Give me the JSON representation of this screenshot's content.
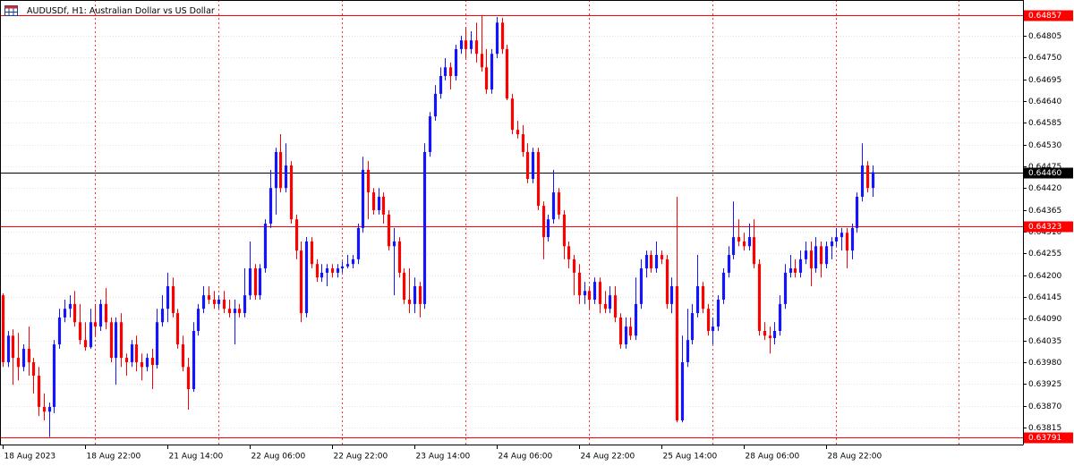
{
  "chart_data": {
    "type": "candlestick",
    "title": "AUDUSDf, H1:  Australian Dollar vs US Dollar",
    "up_color": "#1414ff",
    "down_color": "#ff0000",
    "grid": true,
    "xlim": [
      -0.5,
      198.3
    ],
    "ylim": [
      0.63772,
      0.64895
    ],
    "yticks": [
      0.64805,
      {
        "value": 0.6475,
        "label": "0.64750"
      },
      0.64695,
      {
        "value": 0.6464,
        "label": "0.64640"
      },
      0.64585,
      {
        "value": 0.6453,
        "label": "0.64530"
      },
      0.64475,
      {
        "value": 0.6442,
        "label": "0.64420"
      },
      0.64365,
      {
        "value": 0.6431,
        "label": "0.64310"
      },
      0.64255,
      {
        "value": 0.642,
        "label": "0.64200"
      },
      0.64145,
      {
        "value": 0.6409,
        "label": "0.64090"
      },
      0.64035,
      {
        "value": 0.6398,
        "label": "0.63980"
      },
      0.63925,
      {
        "value": 0.6387,
        "label": "0.63870"
      },
      0.63815
    ],
    "xticks": [
      {
        "value": 0,
        "label": "18 Aug 2023"
      },
      {
        "value": 16,
        "label": "18 Aug 22:00"
      },
      {
        "value": 32,
        "label": "21 Aug 14:00"
      },
      {
        "value": 48,
        "label": "22 Aug 06:00"
      },
      {
        "value": 64,
        "label": "22 Aug 22:00"
      },
      {
        "value": 80,
        "label": "23 Aug 14:00"
      },
      {
        "value": 96,
        "label": "24 Aug 06:00"
      },
      {
        "value": 112,
        "label": "24 Aug 22:00"
      },
      {
        "value": 128,
        "label": "25 Aug 14:00"
      },
      {
        "value": 144,
        "label": "28 Aug 06:00"
      },
      {
        "value": 160,
        "label": "28 Aug 22:00"
      }
    ],
    "hlines": [
      {
        "value": 0.64857,
        "color": "#ff0000"
      },
      {
        "value": 0.6446,
        "label": "0.64460",
        "color": "#000000"
      },
      {
        "value": 0.64323,
        "color": "#ff0000"
      },
      {
        "value": 0.63791,
        "color": "#ff0000"
      }
    ],
    "ohlc": [
      [
        0.64149,
        0.64154,
        0.63968,
        0.6398
      ],
      [
        0.6398,
        0.64059,
        0.63968,
        0.64047
      ],
      [
        0.64047,
        0.64063,
        0.63923,
        0.63991
      ],
      [
        0.63991,
        0.64054,
        0.63934,
        0.63968
      ],
      [
        0.63968,
        0.64025,
        0.63957,
        0.64014
      ],
      [
        0.64014,
        0.6407,
        0.63946,
        0.6398
      ],
      [
        0.6398,
        0.63991,
        0.63901,
        0.63946
      ],
      [
        0.63946,
        0.63968,
        0.63844,
        0.63867
      ],
      [
        0.63867,
        0.63901,
        0.63833,
        0.63855
      ],
      [
        0.63855,
        0.63878,
        0.63791,
        0.63867
      ],
      [
        0.63867,
        0.64036,
        0.63851,
        0.64025
      ],
      [
        0.64025,
        0.64115,
        0.64014,
        0.64093
      ],
      [
        0.64093,
        0.64138,
        0.64081,
        0.64115
      ],
      [
        0.64115,
        0.64149,
        0.64093,
        0.64127
      ],
      [
        0.64127,
        0.6416,
        0.6407,
        0.64081
      ],
      [
        0.64081,
        0.64127,
        0.64025,
        0.64036
      ],
      [
        0.64036,
        0.64081,
        0.64009,
        0.64018
      ],
      [
        0.64018,
        0.64115,
        0.64014,
        0.64081
      ],
      [
        0.64081,
        0.64127,
        0.64047,
        0.6407
      ],
      [
        0.6407,
        0.64138,
        0.64059,
        0.64127
      ],
      [
        0.64127,
        0.64167,
        0.64063,
        0.64081
      ],
      [
        0.64081,
        0.64093,
        0.6398,
        0.63991
      ],
      [
        0.63991,
        0.64093,
        0.63923,
        0.64081
      ],
      [
        0.64081,
        0.64104,
        0.63968,
        0.63991
      ],
      [
        0.63991,
        0.64002,
        0.63946,
        0.6398
      ],
      [
        0.6398,
        0.64036,
        0.63968,
        0.64025
      ],
      [
        0.64025,
        0.64047,
        0.63957,
        0.6398
      ],
      [
        0.6398,
        0.64002,
        0.63934,
        0.63968
      ],
      [
        0.63968,
        0.64002,
        0.63957,
        0.63991
      ],
      [
        0.63991,
        0.64014,
        0.63912,
        0.63973
      ],
      [
        0.63973,
        0.64115,
        0.63964,
        0.64081
      ],
      [
        0.64081,
        0.64149,
        0.6407,
        0.64115
      ],
      [
        0.64115,
        0.64206,
        0.64081,
        0.64172
      ],
      [
        0.64172,
        0.64194,
        0.64093,
        0.64104
      ],
      [
        0.64104,
        0.64115,
        0.64014,
        0.64025
      ],
      [
        0.64025,
        0.64047,
        0.63957,
        0.63968
      ],
      [
        0.63968,
        0.63991,
        0.6386,
        0.63912
      ],
      [
        0.63912,
        0.64081,
        0.63905,
        0.64059
      ],
      [
        0.64059,
        0.64127,
        0.64047,
        0.64115
      ],
      [
        0.64115,
        0.64172,
        0.64104,
        0.64149
      ],
      [
        0.64149,
        0.64172,
        0.64127,
        0.64138
      ],
      [
        0.64138,
        0.6416,
        0.64115,
        0.64127
      ],
      [
        0.64127,
        0.64149,
        0.64115,
        0.64138
      ],
      [
        0.64138,
        0.6416,
        0.64104,
        0.64115
      ],
      [
        0.64115,
        0.64138,
        0.64093,
        0.64104
      ],
      [
        0.64104,
        0.64138,
        0.64025,
        0.64115
      ],
      [
        0.64115,
        0.64127,
        0.64093,
        0.64104
      ],
      [
        0.64104,
        0.64217,
        0.64093,
        0.64149
      ],
      [
        0.64149,
        0.64285,
        0.64138,
        0.64217
      ],
      [
        0.64217,
        0.64228,
        0.64138,
        0.64149
      ],
      [
        0.64149,
        0.64228,
        0.64138,
        0.64217
      ],
      [
        0.64217,
        0.64341,
        0.64206,
        0.6433
      ],
      [
        0.6433,
        0.64466,
        0.64319,
        0.6442
      ],
      [
        0.6442,
        0.64522,
        0.64353,
        0.64511
      ],
      [
        0.64511,
        0.64556,
        0.64409,
        0.6442
      ],
      [
        0.6442,
        0.64533,
        0.64409,
        0.64477
      ],
      [
        0.64477,
        0.64488,
        0.6433,
        0.64341
      ],
      [
        0.64341,
        0.64353,
        0.6424,
        0.64262
      ],
      [
        0.64262,
        0.64285,
        0.64081,
        0.64104
      ],
      [
        0.64104,
        0.64296,
        0.64093,
        0.64285
      ],
      [
        0.64285,
        0.64296,
        0.64217,
        0.64228
      ],
      [
        0.64228,
        0.6424,
        0.64183,
        0.64194
      ],
      [
        0.64194,
        0.64228,
        0.64183,
        0.64206
      ],
      [
        0.64206,
        0.64228,
        0.64172,
        0.64217
      ],
      [
        0.64217,
        0.64228,
        0.64194,
        0.64206
      ],
      [
        0.64206,
        0.64228,
        0.64194,
        0.64217
      ],
      [
        0.64217,
        0.64235,
        0.64206,
        0.64222
      ],
      [
        0.64222,
        0.64251,
        0.64217,
        0.64228
      ],
      [
        0.64228,
        0.64251,
        0.64217,
        0.6424
      ],
      [
        0.6424,
        0.6433,
        0.64228,
        0.64319
      ],
      [
        0.64319,
        0.64499,
        0.64307,
        0.64466
      ],
      [
        0.64466,
        0.64488,
        0.64341,
        0.64409
      ],
      [
        0.64409,
        0.6442,
        0.64353,
        0.64364
      ],
      [
        0.64364,
        0.6442,
        0.64353,
        0.64398
      ],
      [
        0.64398,
        0.64409,
        0.6433,
        0.64353
      ],
      [
        0.64353,
        0.64364,
        0.64262,
        0.64273
      ],
      [
        0.64273,
        0.64319,
        0.64149,
        0.64285
      ],
      [
        0.64285,
        0.64296,
        0.64194,
        0.64206
      ],
      [
        0.64206,
        0.64217,
        0.64127,
        0.64138
      ],
      [
        0.64138,
        0.64217,
        0.64104,
        0.64127
      ],
      [
        0.64127,
        0.64194,
        0.64104,
        0.64172
      ],
      [
        0.64172,
        0.64183,
        0.64093,
        0.64127
      ],
      [
        0.64127,
        0.64533,
        0.64115,
        0.64511
      ],
      [
        0.64511,
        0.64612,
        0.64499,
        0.64601
      ],
      [
        0.64601,
        0.6468,
        0.6459,
        0.64658
      ],
      [
        0.64658,
        0.64725,
        0.64646,
        0.64703
      ],
      [
        0.64703,
        0.64748,
        0.64692,
        0.64725
      ],
      [
        0.64725,
        0.64737,
        0.64669,
        0.64703
      ],
      [
        0.64703,
        0.64782,
        0.64692,
        0.64771
      ],
      [
        0.64771,
        0.64805,
        0.64759,
        0.64793
      ],
      [
        0.64793,
        0.64827,
        0.64748,
        0.64771
      ],
      [
        0.64771,
        0.64816,
        0.64759,
        0.64793
      ],
      [
        0.64793,
        0.64838,
        0.64737,
        0.64759
      ],
      [
        0.64759,
        0.64857,
        0.64714,
        0.64725
      ],
      [
        0.64725,
        0.64771,
        0.64658,
        0.64669
      ],
      [
        0.64669,
        0.64771,
        0.64658,
        0.64759
      ],
      [
        0.64759,
        0.64852,
        0.64748,
        0.64838
      ],
      [
        0.64838,
        0.6485,
        0.64759,
        0.64771
      ],
      [
        0.64771,
        0.64782,
        0.64642,
        0.64646
      ],
      [
        0.64646,
        0.64658,
        0.64556,
        0.64567
      ],
      [
        0.64567,
        0.6459,
        0.64545,
        0.64556
      ],
      [
        0.64556,
        0.64579,
        0.64499,
        0.64511
      ],
      [
        0.64511,
        0.64533,
        0.64432,
        0.64443
      ],
      [
        0.64443,
        0.64522,
        0.64432,
        0.64511
      ],
      [
        0.64511,
        0.64522,
        0.64364,
        0.64375
      ],
      [
        0.64375,
        0.64386,
        0.6424,
        0.64296
      ],
      [
        0.64296,
        0.64353,
        0.64285,
        0.64341
      ],
      [
        0.64341,
        0.64466,
        0.6433,
        0.64409
      ],
      [
        0.64409,
        0.6442,
        0.64341,
        0.64353
      ],
      [
        0.64353,
        0.64364,
        0.6424,
        0.64273
      ],
      [
        0.64273,
        0.64285,
        0.64217,
        0.6424
      ],
      [
        0.6424,
        0.64251,
        0.64149,
        0.64206
      ],
      [
        0.64206,
        0.64228,
        0.64127,
        0.64149
      ],
      [
        0.64149,
        0.64183,
        0.64127,
        0.6416
      ],
      [
        0.6416,
        0.64172,
        0.64115,
        0.64138
      ],
      [
        0.64138,
        0.64194,
        0.64127,
        0.64183
      ],
      [
        0.64183,
        0.64194,
        0.64104,
        0.64127
      ],
      [
        0.64127,
        0.6416,
        0.64104,
        0.64115
      ],
      [
        0.64115,
        0.64172,
        0.64104,
        0.64149
      ],
      [
        0.64149,
        0.64172,
        0.64081,
        0.64093
      ],
      [
        0.64093,
        0.64104,
        0.64014,
        0.64025
      ],
      [
        0.64025,
        0.64093,
        0.64014,
        0.6407
      ],
      [
        0.6407,
        0.64093,
        0.64036,
        0.64047
      ],
      [
        0.64047,
        0.64194,
        0.64036,
        0.64127
      ],
      [
        0.64127,
        0.6424,
        0.64115,
        0.64217
      ],
      [
        0.64217,
        0.64262,
        0.64194,
        0.64251
      ],
      [
        0.64251,
        0.64262,
        0.64206,
        0.64217
      ],
      [
        0.64217,
        0.64285,
        0.64206,
        0.64251
      ],
      [
        0.64251,
        0.64262,
        0.64228,
        0.6424
      ],
      [
        0.6424,
        0.64251,
        0.64115,
        0.64127
      ],
      [
        0.64127,
        0.64194,
        0.64104,
        0.64172
      ],
      [
        0.64172,
        0.64398,
        0.63828,
        0.63833
      ],
      [
        0.63833,
        0.64047,
        0.63828,
        0.6398
      ],
      [
        0.6398,
        0.64115,
        0.63968,
        0.64036
      ],
      [
        0.64036,
        0.64127,
        0.64025,
        0.64104
      ],
      [
        0.64104,
        0.64251,
        0.64093,
        0.64172
      ],
      [
        0.64172,
        0.64183,
        0.64104,
        0.64115
      ],
      [
        0.64115,
        0.64127,
        0.64047,
        0.64059
      ],
      [
        0.64059,
        0.64093,
        0.64025,
        0.6407
      ],
      [
        0.6407,
        0.64149,
        0.64059,
        0.64138
      ],
      [
        0.64138,
        0.64217,
        0.64127,
        0.64206
      ],
      [
        0.64206,
        0.64273,
        0.64194,
        0.64251
      ],
      [
        0.64251,
        0.64386,
        0.6424,
        0.64296
      ],
      [
        0.64296,
        0.64341,
        0.64273,
        0.64285
      ],
      [
        0.64285,
        0.64307,
        0.64262,
        0.64273
      ],
      [
        0.64273,
        0.6433,
        0.64262,
        0.64296
      ],
      [
        0.64296,
        0.64341,
        0.64217,
        0.64228
      ],
      [
        0.64228,
        0.6424,
        0.64047,
        0.64059
      ],
      [
        0.64059,
        0.64081,
        0.64036,
        0.64047
      ],
      [
        0.64047,
        0.6407,
        0.64002,
        0.64041
      ],
      [
        0.64041,
        0.64081,
        0.64025,
        0.64059
      ],
      [
        0.64059,
        0.64149,
        0.64047,
        0.64127
      ],
      [
        0.64127,
        0.64228,
        0.64115,
        0.64206
      ],
      [
        0.64206,
        0.64251,
        0.64194,
        0.64217
      ],
      [
        0.64217,
        0.6424,
        0.64194,
        0.64206
      ],
      [
        0.64206,
        0.64262,
        0.64194,
        0.6424
      ],
      [
        0.6424,
        0.64285,
        0.64228,
        0.64262
      ],
      [
        0.64262,
        0.64285,
        0.64172,
        0.64217
      ],
      [
        0.64217,
        0.64296,
        0.64206,
        0.64273
      ],
      [
        0.64273,
        0.64285,
        0.64194,
        0.64228
      ],
      [
        0.64228,
        0.64285,
        0.64217,
        0.64273
      ],
      [
        0.64273,
        0.64296,
        0.6424,
        0.64285
      ],
      [
        0.64285,
        0.64319,
        0.64273,
        0.64296
      ],
      [
        0.64296,
        0.64319,
        0.64262,
        0.64307
      ],
      [
        0.64307,
        0.64319,
        0.64217,
        0.64262
      ],
      [
        0.64262,
        0.6433,
        0.6424,
        0.64319
      ],
      [
        0.64319,
        0.64409,
        0.64307,
        0.64398
      ],
      [
        0.64398,
        0.64533,
        0.64386,
        0.64477
      ],
      [
        0.64477,
        0.64488,
        0.64409,
        0.6442
      ],
      [
        0.6442,
        0.64477,
        0.64398,
        0.6446
      ]
    ]
  }
}
